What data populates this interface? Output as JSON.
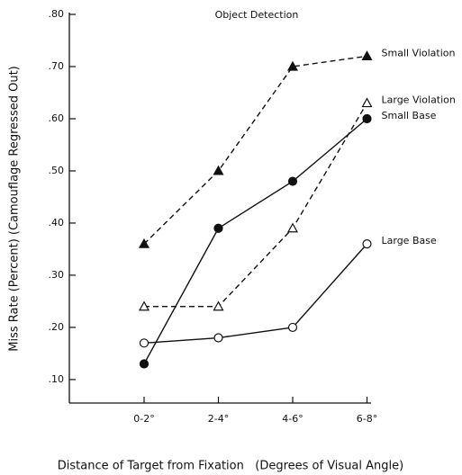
{
  "chart_data": {
    "type": "line",
    "title": "Object Detection",
    "xlabel": "Distance of Target from Fixation   (Degrees of Visual Angle)",
    "ylabel": "Miss Rate (Percent) (Camouflage Regressed Out)",
    "categories": [
      "0-2°",
      "2-4°",
      "4-6°",
      "6-8°"
    ],
    "series": [
      {
        "name": "Small Violation",
        "color": "#111111",
        "marker": "triangle",
        "filled": true,
        "dashed": true,
        "values": [
          0.36,
          0.5,
          0.7,
          0.72
        ]
      },
      {
        "name": "Large Violation",
        "color": "#111111",
        "marker": "triangle",
        "filled": false,
        "dashed": true,
        "values": [
          0.24,
          0.24,
          0.39,
          0.63
        ]
      },
      {
        "name": "Small Base",
        "color": "#111111",
        "marker": "circle",
        "filled": true,
        "dashed": false,
        "values": [
          0.13,
          0.39,
          0.48,
          0.6
        ]
      },
      {
        "name": "Large Base",
        "color": "#111111",
        "marker": "circle",
        "filled": false,
        "dashed": false,
        "values": [
          0.17,
          0.18,
          0.2,
          0.36
        ]
      }
    ],
    "ylim": [
      0.055,
      0.8
    ],
    "yticks": [
      {
        "value": 0.1,
        "label": ".10"
      },
      {
        "value": 0.2,
        "label": ".20"
      },
      {
        "value": 0.3,
        "label": ".30"
      },
      {
        "value": 0.4,
        "label": ".40"
      },
      {
        "value": 0.5,
        "label": ".50"
      },
      {
        "value": 0.6,
        "label": ".60"
      },
      {
        "value": 0.7,
        "label": ".70"
      },
      {
        "value": 0.8,
        "label": ".80"
      }
    ],
    "grid": false
  }
}
